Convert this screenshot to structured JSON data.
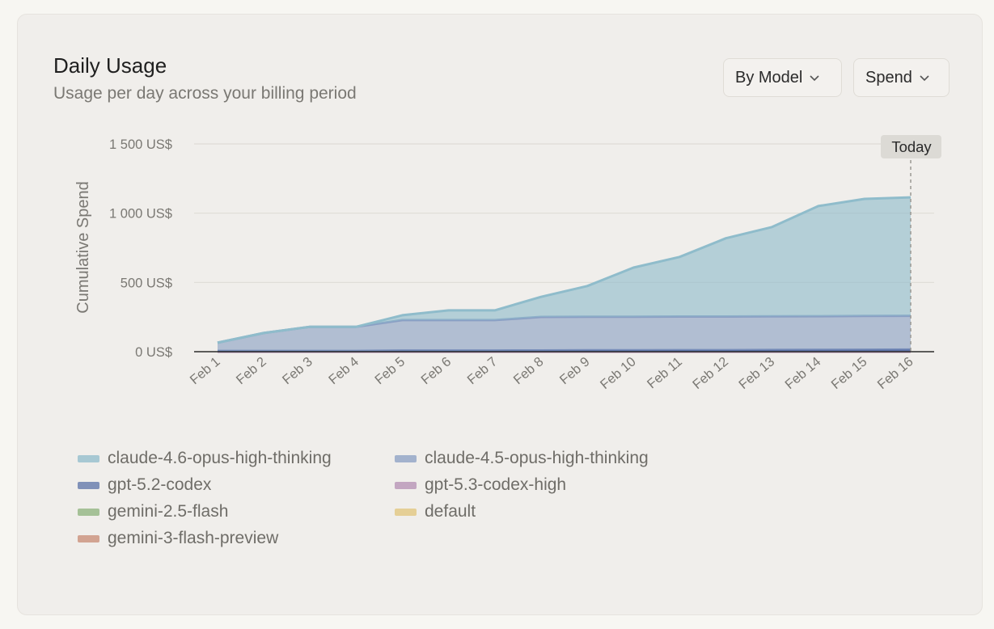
{
  "header": {
    "title": "Daily Usage",
    "subtitle": "Usage per day across your billing period"
  },
  "controls": {
    "group_by": "By Model",
    "metric": "Spend"
  },
  "marker": {
    "label": "Today"
  },
  "colors": {
    "claude-4.6-opus-high-thinking": "#8fbccb",
    "claude-4.5-opus-high-thinking": "#8a9fc4",
    "gpt-5.2-codex": "#5b72a8",
    "gpt-5.3-codex-high": "#b58fb3",
    "gemini-2.5-flash": "#8db37c",
    "default": "#e2c57a",
    "gemini-3-flash-preview": "#c98a74"
  },
  "chart_data": {
    "type": "area",
    "stacked": true,
    "ylabel": "Cumulative Spend",
    "xlabel": "",
    "ylim": [
      0,
      1500
    ],
    "yticks": [
      {
        "value": 0,
        "label": "0 US$"
      },
      {
        "value": 500,
        "label": "500 US$"
      },
      {
        "value": 1000,
        "label": "1 000 US$"
      },
      {
        "value": 1500,
        "label": "1 500 US$"
      }
    ],
    "categories": [
      "Feb 1",
      "Feb 2",
      "Feb 3",
      "Feb 4",
      "Feb 5",
      "Feb 6",
      "Feb 7",
      "Feb 8",
      "Feb 9",
      "Feb 10",
      "Feb 11",
      "Feb 12",
      "Feb 13",
      "Feb 14",
      "Feb 15",
      "Feb 16"
    ],
    "series": [
      {
        "name": "gemini-3-flash-preview",
        "values": [
          0,
          0,
          0,
          0,
          0,
          0,
          0,
          0,
          0,
          0,
          0,
          0,
          0,
          0,
          0,
          0
        ]
      },
      {
        "name": "default",
        "values": [
          0,
          0,
          0,
          0,
          0,
          0,
          0,
          0,
          0,
          0,
          0,
          0,
          0,
          0,
          0,
          0
        ]
      },
      {
        "name": "gemini-2.5-flash",
        "values": [
          0,
          0,
          0,
          0,
          0,
          0,
          0,
          0,
          0,
          0,
          0,
          0,
          0,
          0,
          0,
          0
        ]
      },
      {
        "name": "gpt-5.3-codex-high",
        "values": [
          0,
          0,
          0,
          0,
          0,
          0,
          0,
          0,
          0,
          0,
          0,
          0,
          0,
          0,
          0,
          0
        ]
      },
      {
        "name": "gpt-5.2-codex",
        "values": [
          5,
          5,
          5,
          5,
          8,
          8,
          8,
          9,
          10,
          10,
          11,
          11,
          12,
          13,
          14,
          15
        ]
      },
      {
        "name": "claude-4.5-opus-high-thinking",
        "values": [
          60,
          130,
          175,
          175,
          220,
          220,
          220,
          242,
          242,
          242,
          243,
          243,
          243,
          243,
          244,
          244
        ]
      },
      {
        "name": "claude-4.6-opus-high-thinking",
        "values": [
          0,
          0,
          0,
          0,
          35,
          70,
          70,
          145,
          222,
          355,
          430,
          565,
          645,
          795,
          845,
          855
        ]
      }
    ],
    "legend": [
      "claude-4.6-opus-high-thinking",
      "claude-4.5-opus-high-thinking",
      "gpt-5.2-codex",
      "gpt-5.3-codex-high",
      "gemini-2.5-flash",
      "default",
      "gemini-3-flash-preview"
    ],
    "marker_category": "Feb 16"
  }
}
